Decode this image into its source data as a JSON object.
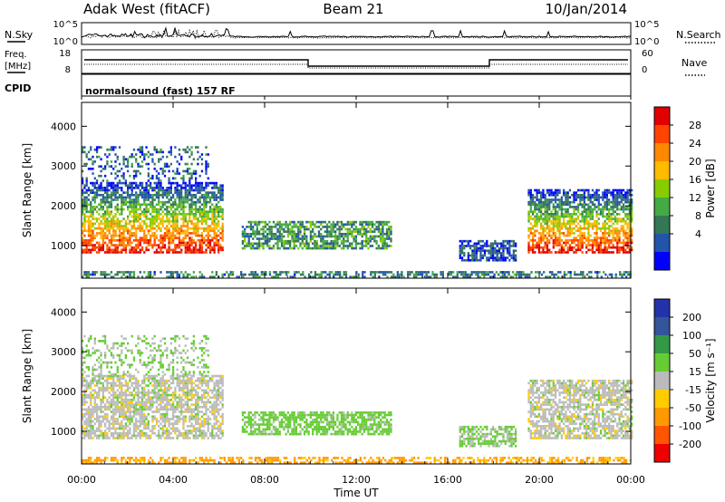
{
  "header": {
    "site": "Adak West (fitACF)",
    "beam": "Beam 21",
    "date": "10/Jan/2014"
  },
  "status_panels": {
    "nsky": {
      "label": "N.Sky",
      "ticks": [
        "10^5",
        "10^0"
      ]
    },
    "nsearch": {
      "label": "N.Search",
      "ticks": [
        "10^5",
        "10^0"
      ]
    },
    "freq": {
      "label_line1": "Freq.",
      "label_line2": "[MHz]",
      "ticks": [
        "18",
        "8"
      ]
    },
    "nave": {
      "label": "Nave",
      "ticks": [
        "60",
        "0"
      ]
    },
    "cpid": {
      "label": "CPID",
      "text": "normalsound (fast) 157 RF"
    }
  },
  "colorbar_power": {
    "label": "Power [dB]",
    "ticks": [
      "28",
      "24",
      "20",
      "16",
      "12",
      "8",
      "4"
    ],
    "colors": [
      "#e00000",
      "#ff4400",
      "#ff8800",
      "#ffbb00",
      "#88cc00",
      "#44aa44",
      "#337755",
      "#2255aa",
      "#0000ff"
    ]
  },
  "colorbar_velocity": {
    "label": "Velocity [m s⁻¹]",
    "ticks": [
      "200",
      "100",
      "50",
      "15",
      "-15",
      "-50",
      "-100",
      "-200"
    ],
    "colors": [
      "#2233aa",
      "#335599",
      "#339944",
      "#66cc33",
      "#bbbbbb",
      "#ffcc00",
      "#ff9900",
      "#ff5500",
      "#ee0000"
    ]
  },
  "axes": {
    "ylabel": "Slant Range [km]",
    "xlabel": "Time UT",
    "yticks": [
      "1000",
      "2000",
      "3000",
      "4000"
    ],
    "xticks": [
      "00:00",
      "04:00",
      "08:00",
      "12:00",
      "16:00",
      "20:00",
      "00:00"
    ]
  },
  "chart_data": [
    {
      "type": "heatmap",
      "title": "",
      "quantity": "Power [dB]",
      "xlabel": "",
      "ylabel": "Slant Range [km]",
      "x_range_hours_ut": [
        0,
        24
      ],
      "y_range_km": [
        180,
        4600
      ],
      "color_range": [
        0,
        30
      ],
      "echo_regions": [
        {
          "t_start": 0.0,
          "t_end": 6.2,
          "range_start_km": 800,
          "range_end_km": 2600,
          "power_db": 28
        },
        {
          "t_start": 0.0,
          "t_end": 5.5,
          "range_start_km": 2600,
          "range_end_km": 3500,
          "power_db": 6
        },
        {
          "t_start": 7.0,
          "t_end": 13.5,
          "range_start_km": 900,
          "range_end_km": 1600,
          "power_db": 10
        },
        {
          "t_start": 16.5,
          "t_end": 19.0,
          "range_start_km": 600,
          "range_end_km": 1100,
          "power_db": 5
        },
        {
          "t_start": 19.5,
          "t_end": 24.0,
          "range_start_km": 800,
          "range_end_km": 2400,
          "power_db": 28
        },
        {
          "t_start": 0.0,
          "t_end": 24.0,
          "range_start_km": 180,
          "range_end_km": 350,
          "power_db": 8
        }
      ]
    },
    {
      "type": "heatmap",
      "title": "",
      "quantity": "Velocity [m s⁻¹]",
      "xlabel": "Time UT",
      "ylabel": "Slant Range [km]",
      "x_range_hours_ut": [
        0,
        24
      ],
      "y_range_km": [
        180,
        4600
      ],
      "color_range": [
        -250,
        250
      ],
      "echo_regions": [
        {
          "t_start": 0.0,
          "t_end": 6.2,
          "range_start_km": 800,
          "range_end_km": 2400,
          "velocity_ms": 0
        },
        {
          "t_start": 0.0,
          "t_end": 5.5,
          "range_start_km": 2400,
          "range_end_km": 3400,
          "velocity_ms": 20
        },
        {
          "t_start": 7.0,
          "t_end": 13.5,
          "range_start_km": 900,
          "range_end_km": 1500,
          "velocity_ms": 30
        },
        {
          "t_start": 16.5,
          "t_end": 19.0,
          "range_start_km": 600,
          "range_end_km": 1100,
          "velocity_ms": 20
        },
        {
          "t_start": 19.5,
          "t_end": 24.0,
          "range_start_km": 800,
          "range_end_km": 2300,
          "velocity_ms": 0
        },
        {
          "t_start": 0.0,
          "t_end": 24.0,
          "range_start_km": 180,
          "range_end_km": 350,
          "velocity_ms": -60
        }
      ]
    }
  ]
}
